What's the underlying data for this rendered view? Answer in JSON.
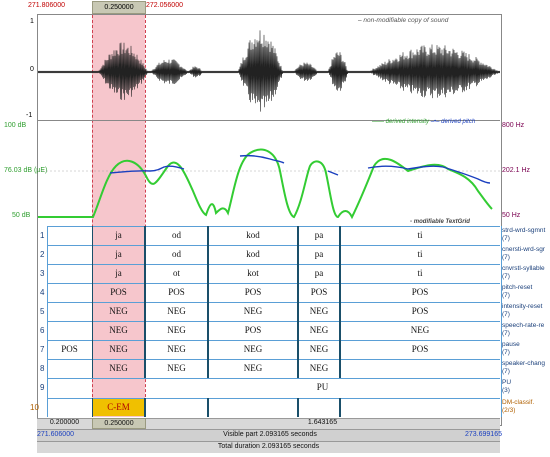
{
  "time": {
    "left": "271.806000",
    "sel": "0.250000",
    "right": "272.056000"
  },
  "wave": {
    "y_top": "1",
    "y_mid": "0",
    "y_bot": "-1",
    "caption": "non-modifiable copy of sound"
  },
  "pitch_panel": {
    "db_top": "100 dB",
    "db_mid": "76.03 dB (µE)",
    "db_bot": "50 dB",
    "hz_top": "800 Hz",
    "hz_mid": "202.1 Hz",
    "hz_bot": "50 Hz",
    "intensity_label": "derived intensity",
    "pitch_label": "derived pitch",
    "textgrid_label": "modifiable TextGrid",
    "colors": {
      "intensity": "#33cc33",
      "pitch": "#1a3fbf"
    }
  },
  "tiers": [
    {
      "num": "1",
      "name": "strd-wrd-sgmnt",
      "count": "(7)",
      "labels": [
        "",
        "ja",
        "od",
        "kod",
        "pa",
        "ti"
      ]
    },
    {
      "num": "2",
      "name": "cnersti-wrd-sgr",
      "count": "(7)",
      "labels": [
        "",
        "ja",
        "od",
        "kod",
        "pa",
        "ti"
      ]
    },
    {
      "num": "3",
      "name": "cnvrstl-syllable",
      "count": "(7)",
      "labels": [
        "",
        "ja",
        "ot",
        "kot",
        "pa",
        "ti"
      ]
    },
    {
      "num": "4",
      "name": "pitch-reset",
      "count": "(7)",
      "labels": [
        "",
        "POS",
        "POS",
        "POS",
        "POS",
        "POS"
      ]
    },
    {
      "num": "5",
      "name": "intensity-reset",
      "count": "(7)",
      "labels": [
        "",
        "NEG",
        "NEG",
        "NEG",
        "NEG",
        "POS"
      ]
    },
    {
      "num": "6",
      "name": "speech-rate-re",
      "count": "(7)",
      "labels": [
        "",
        "NEG",
        "NEG",
        "POS",
        "NEG",
        "NEG"
      ]
    },
    {
      "num": "7",
      "name": "pause",
      "count": "(7)",
      "labels": [
        "POS",
        "NEG",
        "NEG",
        "NEG",
        "NEG",
        "POS"
      ]
    },
    {
      "num": "8",
      "name": "speaker-chang",
      "count": "(7)",
      "labels": [
        "",
        "NEG",
        "NEG",
        "NEG",
        "NEG",
        ""
      ]
    },
    {
      "num": "9",
      "name": "PU",
      "count": "(3)",
      "labels": [
        "",
        "",
        "",
        "PU",
        "",
        ""
      ]
    },
    {
      "num": "10",
      "name": "DM-classif.",
      "count": "(2/3)",
      "labels": [
        "",
        "C-EM",
        "",
        "",
        "",
        ""
      ]
    }
  ],
  "bottom": {
    "seg_left": "0.200000",
    "seg_sel": "0.250000",
    "seg_right": "1.643165",
    "start": "271.606000",
    "end": "273.699165",
    "visible": "Visible part 2.093165 seconds",
    "total": "Total duration 2.093165 seconds"
  }
}
